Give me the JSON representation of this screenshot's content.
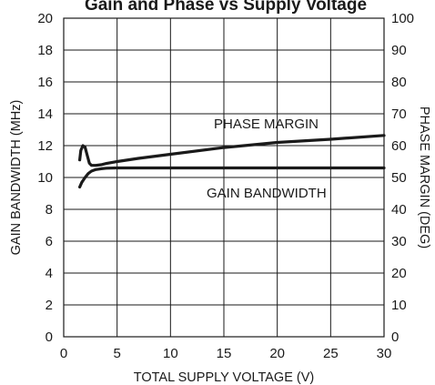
{
  "chart_data": {
    "type": "line",
    "title": "Gain and Phase vs Supply Voltage",
    "xlabel": "TOTAL SUPPLY VOLTAGE (V)",
    "ylabel": "GAIN BANDWIDTH (MHz)",
    "y2label": "PHASE MARGIN (DEG)",
    "xlim": [
      0,
      30
    ],
    "ylim": [
      0,
      20
    ],
    "y2lim": [
      0,
      100
    ],
    "xticks": [
      "0",
      "5",
      "10",
      "15",
      "20",
      "25",
      "30"
    ],
    "yticks": [
      "0",
      "2",
      "4",
      "6",
      "8",
      "10",
      "12",
      "14",
      "16",
      "18",
      "20"
    ],
    "y2ticks": [
      "0",
      "10",
      "20",
      "30",
      "40",
      "50",
      "60",
      "70",
      "80",
      "90",
      "100"
    ],
    "grid": true,
    "series": [
      {
        "name": "PHASE MARGIN",
        "axis": "right",
        "x": [
          1.5,
          1.6,
          1.8,
          2.0,
          2.2,
          2.4,
          2.6,
          3.0,
          3.5,
          4,
          5,
          7,
          10,
          15,
          20,
          25,
          30
        ],
        "y": [
          55.5,
          58.5,
          60.0,
          59.5,
          57.0,
          54.5,
          53.8,
          53.8,
          54.0,
          54.4,
          55.0,
          56.0,
          57.3,
          59.4,
          61.0,
          62.0,
          63.2
        ]
      },
      {
        "name": "GAIN BANDWIDTH",
        "axis": "left",
        "x": [
          1.5,
          1.7,
          2.0,
          2.3,
          2.6,
          3.0,
          3.5,
          4,
          5,
          7,
          10,
          15,
          20,
          25,
          30
        ],
        "y": [
          9.4,
          9.7,
          10.0,
          10.25,
          10.4,
          10.5,
          10.55,
          10.58,
          10.6,
          10.6,
          10.6,
          10.6,
          10.6,
          10.6,
          10.6
        ]
      }
    ]
  }
}
